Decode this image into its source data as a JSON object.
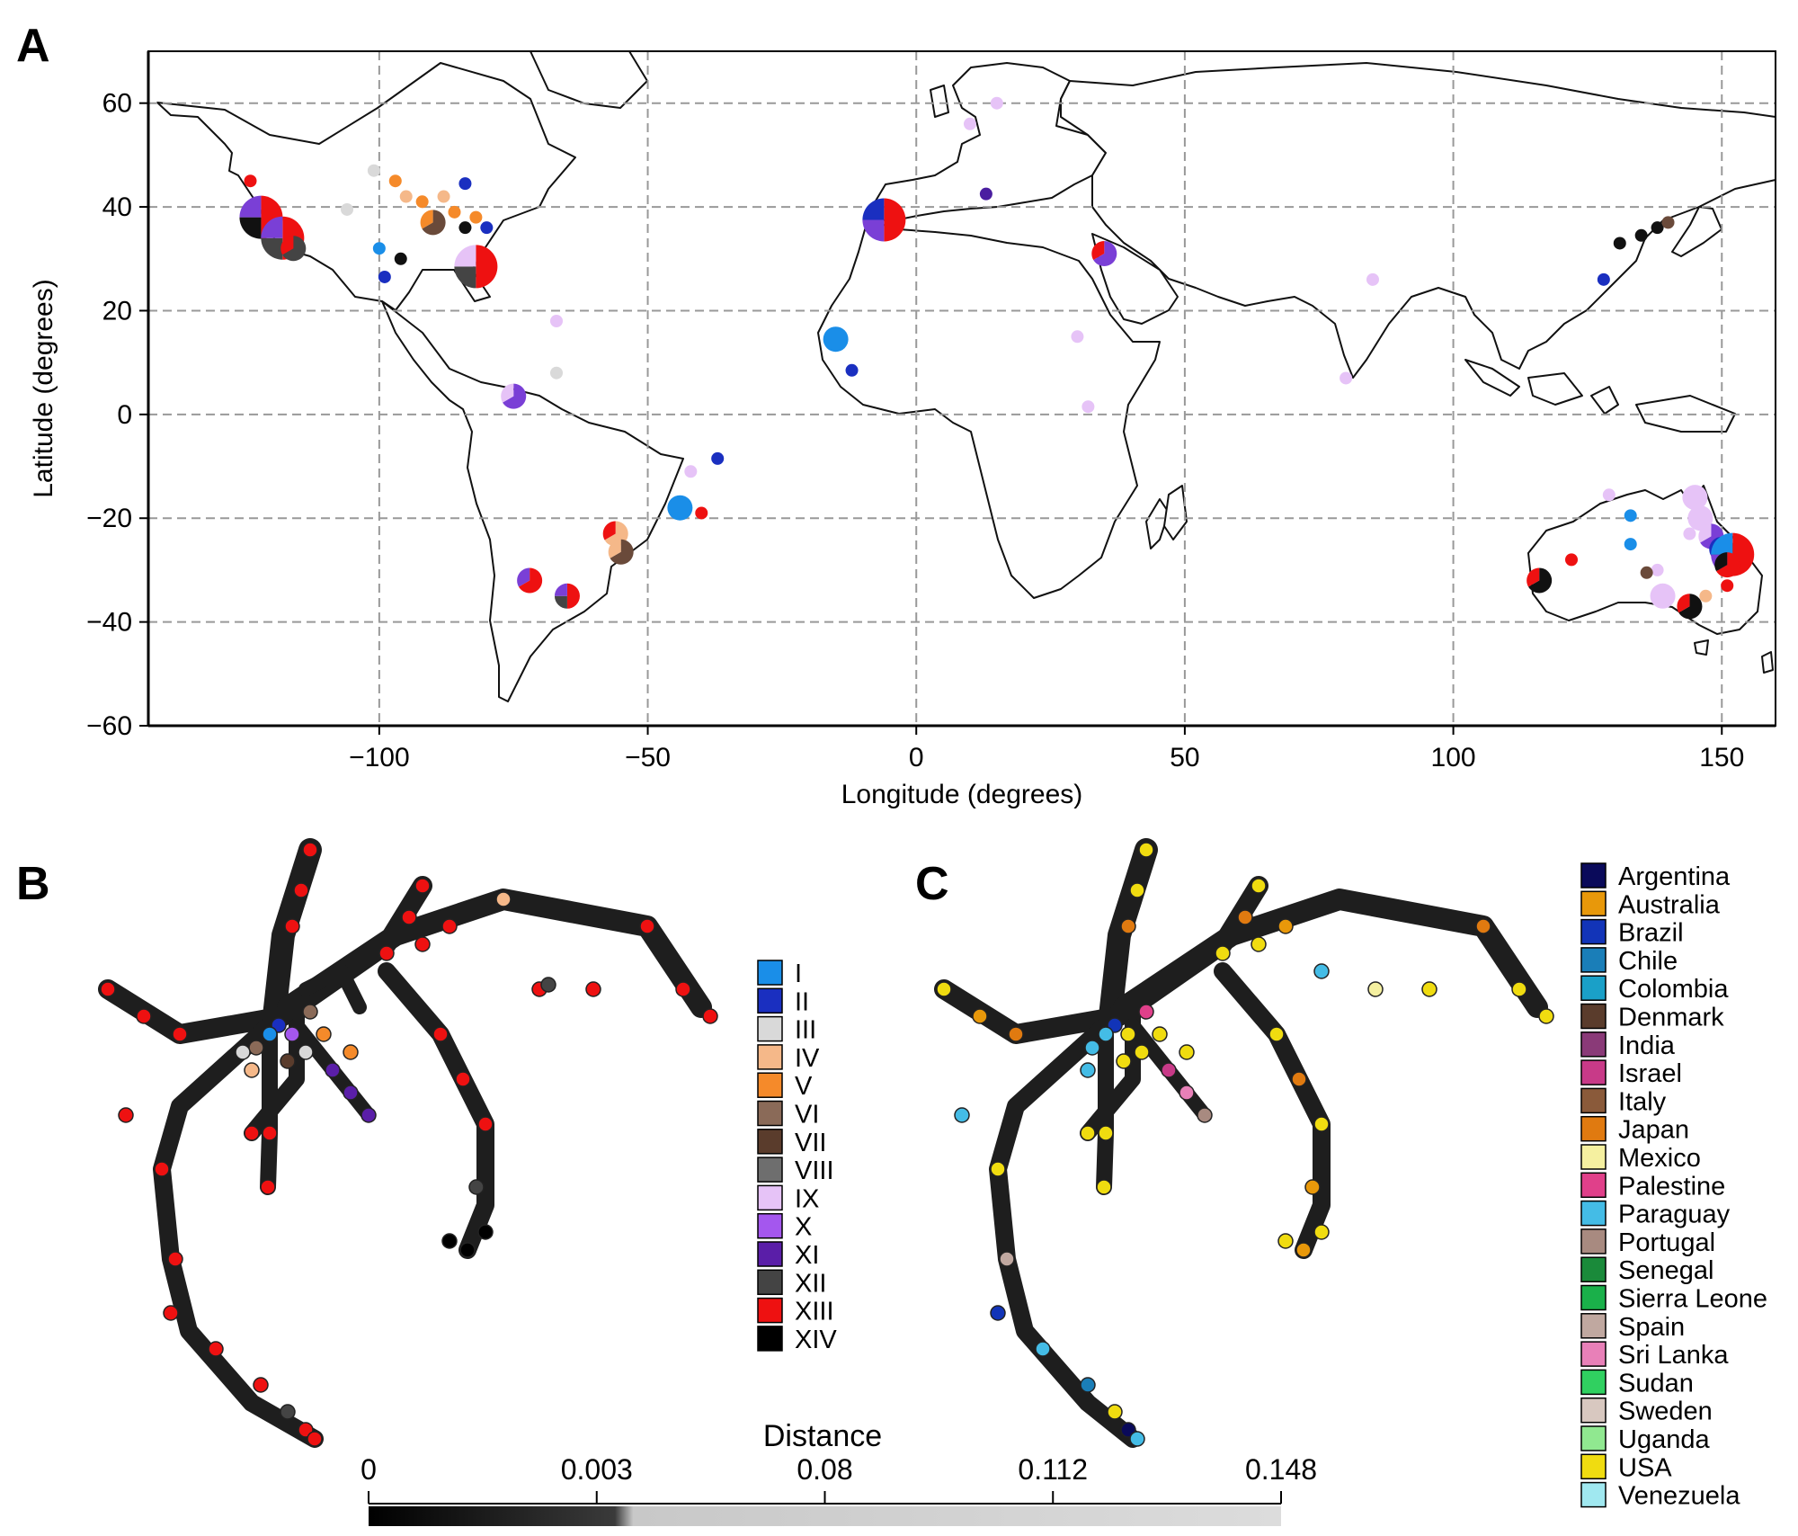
{
  "panel_labels": [
    "A",
    "B",
    "C"
  ],
  "chart_data": [
    {
      "type": "scatter",
      "panel": "A",
      "xlabel": "Longitude (degrees)",
      "ylabel": "Latitude (degrees)",
      "xlim": [
        -143,
        160
      ],
      "ylim": [
        -60,
        70
      ],
      "xticks": [
        -100,
        -50,
        0,
        50,
        100,
        150
      ],
      "xtick_labels": [
        "−100",
        "−50",
        "0",
        "50",
        "100",
        "150"
      ],
      "yticks": [
        60,
        40,
        20,
        0,
        -20,
        -40,
        -60
      ],
      "ytick_labels": [
        "60",
        "40",
        "20",
        "0",
        "−20",
        "−40",
        "−60"
      ],
      "grid": true,
      "background": "world map with country borders",
      "points": [
        {
          "lon": -124,
          "lat": 45,
          "size": 1,
          "colors": [
            "#ee1111"
          ]
        },
        {
          "lon": -122,
          "lat": 38,
          "size": 3,
          "colors": [
            "#ee1111",
            "#111111",
            "#7a3fd6"
          ]
        },
        {
          "lon": -118,
          "lat": 34,
          "size": 3,
          "colors": [
            "#ee1111",
            "#444444",
            "#7a3fd6"
          ]
        },
        {
          "lon": -116,
          "lat": 32,
          "size": 2,
          "colors": [
            "#444444",
            "#ee1111"
          ]
        },
        {
          "lon": -101,
          "lat": 47,
          "size": 1,
          "colors": [
            "#d9d9d9"
          ]
        },
        {
          "lon": -106,
          "lat": 39.5,
          "size": 1,
          "colors": [
            "#d9d9d9"
          ]
        },
        {
          "lon": -97,
          "lat": 45,
          "size": 1,
          "colors": [
            "#f58a2a"
          ]
        },
        {
          "lon": -95,
          "lat": 42,
          "size": 1,
          "colors": [
            "#f5b889"
          ]
        },
        {
          "lon": -92,
          "lat": 41,
          "size": 1,
          "colors": [
            "#f58a2a"
          ]
        },
        {
          "lon": -88,
          "lat": 42,
          "size": 1,
          "colors": [
            "#f5b889"
          ]
        },
        {
          "lon": -90,
          "lat": 37,
          "size": 2,
          "colors": [
            "#6a4a3a",
            "#f58a2a"
          ]
        },
        {
          "lon": -86,
          "lat": 39,
          "size": 1,
          "colors": [
            "#f58a2a"
          ]
        },
        {
          "lon": -84,
          "lat": 44.5,
          "size": 1,
          "colors": [
            "#1a2fc0"
          ]
        },
        {
          "lon": -84,
          "lat": 36,
          "size": 1,
          "colors": [
            "#111111"
          ]
        },
        {
          "lon": -82,
          "lat": 38,
          "size": 1,
          "colors": [
            "#f58a2a"
          ]
        },
        {
          "lon": -80,
          "lat": 36,
          "size": 1,
          "colors": [
            "#1a2fc0"
          ]
        },
        {
          "lon": -100,
          "lat": 32,
          "size": 1,
          "colors": [
            "#1a8ee8"
          ]
        },
        {
          "lon": -96,
          "lat": 30,
          "size": 1,
          "colors": [
            "#111111"
          ]
        },
        {
          "lon": -99,
          "lat": 26.5,
          "size": 1,
          "colors": [
            "#1a2fc0"
          ]
        },
        {
          "lon": -82,
          "lat": 28.5,
          "size": 3,
          "colors": [
            "#ee1111",
            "#444444",
            "#e6c3f7"
          ]
        },
        {
          "lon": -67,
          "lat": 18,
          "size": 1,
          "colors": [
            "#e6c3f7"
          ]
        },
        {
          "lon": -67,
          "lat": 8,
          "size": 1,
          "colors": [
            "#d9d9d9"
          ]
        },
        {
          "lon": -75,
          "lat": 3.5,
          "size": 2,
          "colors": [
            "#7a3fd6",
            "#e6c3f7"
          ]
        },
        {
          "lon": -44,
          "lat": -18,
          "size": 2,
          "colors": [
            "#1a8ee8"
          ]
        },
        {
          "lon": -42,
          "lat": -11,
          "size": 1,
          "colors": [
            "#e6c3f7"
          ]
        },
        {
          "lon": -37,
          "lat": -8.5,
          "size": 1,
          "colors": [
            "#1a2fc0"
          ]
        },
        {
          "lon": -40,
          "lat": -19,
          "size": 1,
          "colors": [
            "#ee1111"
          ]
        },
        {
          "lon": -56,
          "lat": -23,
          "size": 2,
          "colors": [
            "#f5b889",
            "#ee1111"
          ]
        },
        {
          "lon": -55,
          "lat": -26.5,
          "size": 2,
          "colors": [
            "#6a4a3a",
            "#f5b889"
          ]
        },
        {
          "lon": -72,
          "lat": -32,
          "size": 2,
          "colors": [
            "#ee1111",
            "#7a3fd6"
          ]
        },
        {
          "lon": -65,
          "lat": -35,
          "size": 2,
          "colors": [
            "#ee1111",
            "#444444",
            "#7a3fd6"
          ]
        },
        {
          "lon": -6,
          "lat": 37.5,
          "size": 3,
          "colors": [
            "#ee1111",
            "#7a3fd6",
            "#1a2fc0"
          ]
        },
        {
          "lon": 10,
          "lat": 56,
          "size": 1,
          "colors": [
            "#e6c3f7"
          ]
        },
        {
          "lon": 15,
          "lat": 60,
          "size": 1,
          "colors": [
            "#e6c3f7"
          ]
        },
        {
          "lon": 13,
          "lat": 42.5,
          "size": 1,
          "colors": [
            "#4a1ea0"
          ]
        },
        {
          "lon": 35,
          "lat": 31,
          "size": 2,
          "colors": [
            "#7a3fd6",
            "#ee1111"
          ]
        },
        {
          "lon": -15,
          "lat": 14.5,
          "size": 2,
          "colors": [
            "#1a8ee8"
          ]
        },
        {
          "lon": -12,
          "lat": 8.5,
          "size": 1,
          "colors": [
            "#1a2fc0"
          ]
        },
        {
          "lon": 30,
          "lat": 15,
          "size": 1,
          "colors": [
            "#e6c3f7"
          ]
        },
        {
          "lon": 32,
          "lat": 1.5,
          "size": 1,
          "colors": [
            "#e6c3f7"
          ]
        },
        {
          "lon": 85,
          "lat": 26,
          "size": 1,
          "colors": [
            "#e6c3f7"
          ]
        },
        {
          "lon": 80,
          "lat": 7,
          "size": 1,
          "colors": [
            "#e6c3f7"
          ]
        },
        {
          "lon": 128,
          "lat": 26,
          "size": 1,
          "colors": [
            "#1a2fc0"
          ]
        },
        {
          "lon": 138,
          "lat": 36,
          "size": 1,
          "colors": [
            "#111111"
          ]
        },
        {
          "lon": 140,
          "lat": 37,
          "size": 1,
          "colors": [
            "#6a4a3a"
          ]
        },
        {
          "lon": 135,
          "lat": 34.5,
          "size": 1,
          "colors": [
            "#111111"
          ]
        },
        {
          "lon": 131,
          "lat": 33,
          "size": 1,
          "colors": [
            "#111111"
          ]
        },
        {
          "lon": 133,
          "lat": -19.5,
          "size": 1,
          "colors": [
            "#1a8ee8"
          ]
        },
        {
          "lon": 129,
          "lat": -15.5,
          "size": 1,
          "colors": [
            "#e6c3f7"
          ]
        },
        {
          "lon": 133,
          "lat": -25,
          "size": 1,
          "colors": [
            "#1a8ee8"
          ]
        },
        {
          "lon": 138,
          "lat": -30,
          "size": 1,
          "colors": [
            "#e6c3f7"
          ]
        },
        {
          "lon": 136,
          "lat": -30.5,
          "size": 1,
          "colors": [
            "#6a4a3a"
          ]
        },
        {
          "lon": 122,
          "lat": -28,
          "size": 1,
          "colors": [
            "#ee1111"
          ]
        },
        {
          "lon": 116,
          "lat": -32,
          "size": 2,
          "colors": [
            "#111111",
            "#ee1111"
          ]
        },
        {
          "lon": 145,
          "lat": -16,
          "size": 2,
          "colors": [
            "#e6c3f7"
          ]
        },
        {
          "lon": 146,
          "lat": -20,
          "size": 2,
          "colors": [
            "#e6c3f7"
          ]
        },
        {
          "lon": 148,
          "lat": -23.5,
          "size": 2,
          "colors": [
            "#7a3fd6",
            "#e6c3f7"
          ]
        },
        {
          "lon": 144,
          "lat": -23,
          "size": 1,
          "colors": [
            "#e6c3f7"
          ]
        },
        {
          "lon": 150,
          "lat": -26,
          "size": 2,
          "colors": [
            "#444444",
            "#1a2fc0"
          ]
        },
        {
          "lon": 152,
          "lat": -27,
          "size": 3,
          "colors": [
            "#ee1111",
            "#7a3fd6",
            "#1a8ee8"
          ]
        },
        {
          "lon": 151,
          "lat": -29,
          "size": 2,
          "colors": [
            "#ee1111",
            "#111111"
          ]
        },
        {
          "lon": 151,
          "lat": -33,
          "size": 1,
          "colors": [
            "#ee1111"
          ]
        },
        {
          "lon": 147,
          "lat": -35,
          "size": 1,
          "colors": [
            "#f5b889"
          ]
        },
        {
          "lon": 144,
          "lat": -37,
          "size": 2,
          "colors": [
            "#111111",
            "#ee1111"
          ]
        },
        {
          "lon": 139,
          "lat": -35,
          "size": 2,
          "colors": [
            "#e6c3f7"
          ]
        }
      ]
    },
    {
      "type": "network",
      "panel": "B",
      "colored_by": "haplogroup",
      "legend": [
        {
          "label": "I",
          "color": "#1a8ee8"
        },
        {
          "label": "II",
          "color": "#1a2fc0"
        },
        {
          "label": "III",
          "color": "#d9d9d9"
        },
        {
          "label": "IV",
          "color": "#f5b889"
        },
        {
          "label": "V",
          "color": "#f58a2a"
        },
        {
          "label": "VI",
          "color": "#8a6a58"
        },
        {
          "label": "VII",
          "color": "#5a3c2c"
        },
        {
          "label": "VIII",
          "color": "#6e6e6e"
        },
        {
          "label": "IX",
          "color": "#e6c3f7"
        },
        {
          "label": "X",
          "color": "#a457ee"
        },
        {
          "label": "XI",
          "color": "#5a1ea8"
        },
        {
          "label": "XII",
          "color": "#444444"
        },
        {
          "label": "XIII",
          "color": "#ee1111"
        },
        {
          "label": "XIV",
          "color": "#000000"
        }
      ]
    },
    {
      "type": "network",
      "panel": "C",
      "colored_by": "country",
      "legend": [
        {
          "label": "Argentina",
          "color": "#0a0a5a"
        },
        {
          "label": "Australia",
          "color": "#e8980a"
        },
        {
          "label": "Brazil",
          "color": "#1234b8"
        },
        {
          "label": "Chile",
          "color": "#1a7eb8"
        },
        {
          "label": "Colombia",
          "color": "#1aa0c8"
        },
        {
          "label": "Denmark",
          "color": "#5a3c2c"
        },
        {
          "label": "India",
          "color": "#8a3a78"
        },
        {
          "label": "Israel",
          "color": "#c83a88"
        },
        {
          "label": "Italy",
          "color": "#8a5a3a"
        },
        {
          "label": "Japan",
          "color": "#e07a10"
        },
        {
          "label": "Mexico",
          "color": "#f5f0a0"
        },
        {
          "label": "Palestine",
          "color": "#e0408a"
        },
        {
          "label": "Paraguay",
          "color": "#44bce6"
        },
        {
          "label": "Portugal",
          "color": "#a88a80"
        },
        {
          "label": "Senegal",
          "color": "#1a8a3a"
        },
        {
          "label": "Sierra Leone",
          "color": "#1ab04a"
        },
        {
          "label": "Spain",
          "color": "#c0a8a0"
        },
        {
          "label": "Sri Lanka",
          "color": "#e880b8"
        },
        {
          "label": "Sudan",
          "color": "#30d060"
        },
        {
          "label": "Sweden",
          "color": "#d8c8c0"
        },
        {
          "label": "Uganda",
          "color": "#90e890"
        },
        {
          "label": "USA",
          "color": "#f0dc10"
        },
        {
          "label": "Venezuela",
          "color": "#a0e8f0"
        }
      ]
    },
    {
      "type": "colorbar",
      "title": "Distance",
      "ticks": [
        0,
        0.003,
        0.08,
        0.112,
        0.148
      ],
      "tick_labels": [
        "0",
        "0.003",
        "0.08",
        "0.112",
        "0.148"
      ]
    }
  ]
}
